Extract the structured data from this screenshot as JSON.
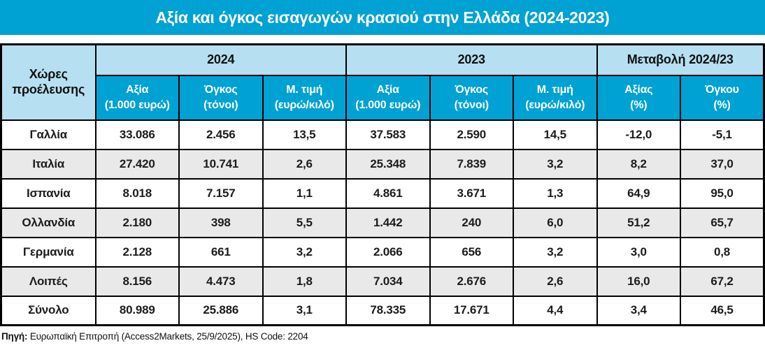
{
  "title": "Αξία και όγκος εισαγωγών κρασιού στην Ελλάδα (2024-2023)",
  "colors": {
    "accent_cyan": "#00A2D3",
    "header_light_blue": "#B7DFF2",
    "row_stripe_gray": "#E9E9E9",
    "border_black": "#000000",
    "title_text": "#FFFFFF"
  },
  "table": {
    "corner_header": "Χώρες προέλευσης",
    "group_headers": [
      "2024",
      "2023",
      "Μεταβολή 2024/23"
    ],
    "subheaders": [
      {
        "line1": "Αξία",
        "line2": "(1.000 ευρώ)"
      },
      {
        "line1": "Όγκος",
        "line2": "(τόνοι)"
      },
      {
        "line1": "Μ. τιμή",
        "line2": "(ευρώ/κιλό)"
      },
      {
        "line1": "Αξία",
        "line2": "(1.000 ευρώ)"
      },
      {
        "line1": "Όγκος",
        "line2": "(τόνοι)"
      },
      {
        "line1": "Μ. τιμή",
        "line2": "(ευρώ/κιλό)"
      },
      {
        "line1": "Αξίας",
        "line2": "(%)"
      },
      {
        "line1": "Όγκου",
        "line2": "(%)"
      }
    ],
    "rows": [
      {
        "country": "Γαλλία",
        "values": [
          "33.086",
          "2.456",
          "13,5",
          "37.583",
          "2.590",
          "14,5",
          "-12,0",
          "-5,1"
        ]
      },
      {
        "country": "Ιταλία",
        "values": [
          "27.420",
          "10.741",
          "2,6",
          "25.348",
          "7.839",
          "3,2",
          "8,2",
          "37,0"
        ]
      },
      {
        "country": "Ισπανία",
        "values": [
          "8.018",
          "7.157",
          "1,1",
          "4.861",
          "3.671",
          "1,3",
          "64,9",
          "95,0"
        ]
      },
      {
        "country": "Ολλανδία",
        "values": [
          "2.180",
          "398",
          "5,5",
          "1.442",
          "240",
          "6,0",
          "51,2",
          "65,7"
        ]
      },
      {
        "country": "Γερμανία",
        "values": [
          "2.128",
          "661",
          "3,2",
          "2.066",
          "656",
          "3,2",
          "3,0",
          "0,8"
        ]
      },
      {
        "country": "Λοιπές",
        "values": [
          "8.156",
          "4.473",
          "1,8",
          "7.034",
          "2.676",
          "2,6",
          "16,0",
          "67,2"
        ]
      },
      {
        "country": "Σύνολο",
        "values": [
          "80.989",
          "25.886",
          "3,1",
          "78.335",
          "17.671",
          "4,4",
          "3,4",
          "46,5"
        ]
      }
    ]
  },
  "footer": {
    "source_label": "Πηγή:",
    "source_text": "Ευρωπαϊκή Επιτροπή (Access2Markets, 25/9/2025), HS Code: 2204"
  },
  "chart_data": {
    "type": "table",
    "title": "Αξία και όγκος εισαγωγών κρασιού στην Ελλάδα (2024-2023)",
    "columns": [
      "Χώρες προέλευσης",
      "2024 Αξία (1.000 ευρώ)",
      "2024 Όγκος (τόνοι)",
      "2024 Μ. τιμή (ευρώ/κιλό)",
      "2023 Αξία (1.000 ευρώ)",
      "2023 Όγκος (τόνοι)",
      "2023 Μ. τιμή (ευρώ/κιλό)",
      "Μεταβολή 2024/23 Αξίας (%)",
      "Μεταβολή 2024/23 Όγκου (%)"
    ],
    "rows": [
      [
        "Γαλλία",
        33086,
        2456,
        13.5,
        37583,
        2590,
        14.5,
        -12.0,
        -5.1
      ],
      [
        "Ιταλία",
        27420,
        10741,
        2.6,
        25348,
        7839,
        3.2,
        8.2,
        37.0
      ],
      [
        "Ισπανία",
        8018,
        7157,
        1.1,
        4861,
        3671,
        1.3,
        64.9,
        95.0
      ],
      [
        "Ολλανδία",
        2180,
        398,
        5.5,
        1442,
        240,
        6.0,
        51.2,
        65.7
      ],
      [
        "Γερμανία",
        2128,
        661,
        3.2,
        2066,
        656,
        3.2,
        3.0,
        0.8
      ],
      [
        "Λοιπές",
        8156,
        4473,
        1.8,
        7034,
        2676,
        2.6,
        16.0,
        67.2
      ],
      [
        "Σύνολο",
        80989,
        25886,
        3.1,
        78335,
        17671,
        4.4,
        3.4,
        46.5
      ]
    ],
    "source": "Πηγή: Ευρωπαϊκή Επιτροπή (Access2Markets, 25/9/2025), HS Code: 2204"
  }
}
